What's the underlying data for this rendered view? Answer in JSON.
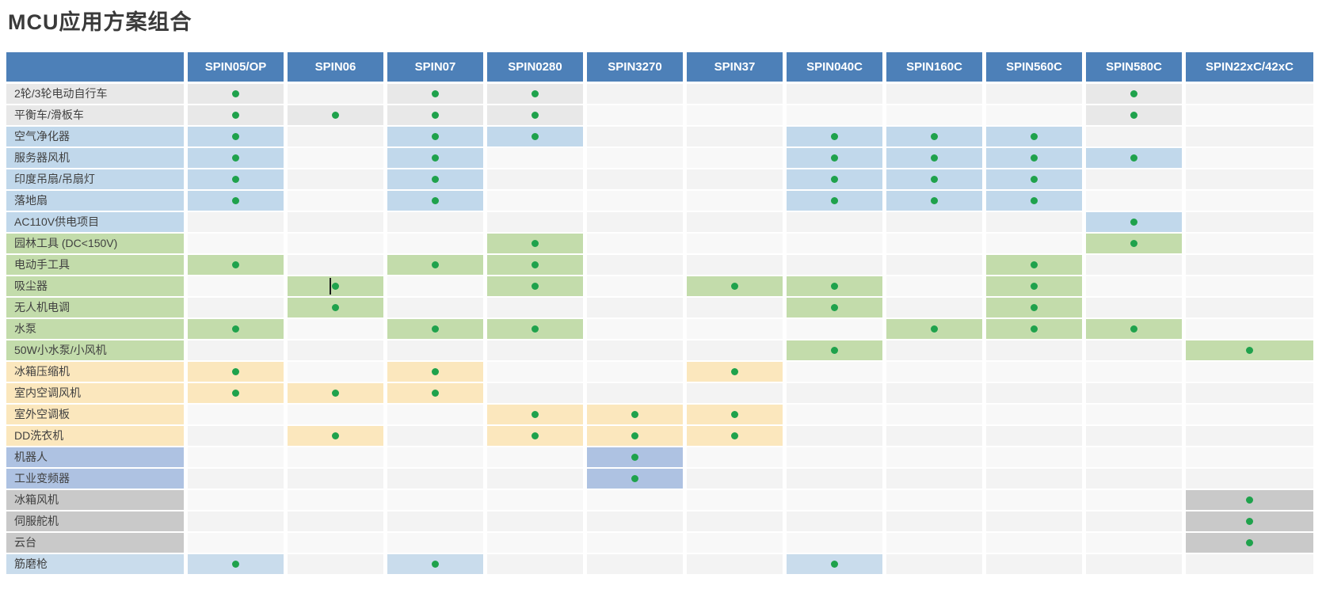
{
  "page": {
    "title": "MCU应用方案组合"
  },
  "colors": {
    "header_bg": "#4d80b8",
    "header_text": "#ffffff",
    "dot_green": "#1fa24c",
    "stripe_a": "#f3f3f3",
    "stripe_b": "#f8f8f8",
    "groups": {
      "gray": "#e8e8e8",
      "blue": "#c1d8eb",
      "green": "#c3dcab",
      "yellow": "#fbe7bd",
      "periwinkle": "#aec2e2",
      "gray2": "#c9c9c9",
      "lightblue": "#c9dcec"
    }
  },
  "table": {
    "columns": [
      "SPIN05/OP",
      "SPIN06",
      "SPIN07",
      "SPIN0280",
      "SPIN3270",
      "SPIN37",
      "SPIN040C",
      "SPIN160C",
      "SPIN560C",
      "SPIN580C",
      "SPIN22xC/42xC"
    ],
    "rows": [
      {
        "label": "2轮/3轮电动自行车",
        "group": "gray",
        "dots": [
          0,
          2,
          3,
          9
        ]
      },
      {
        "label": "平衡车/滑板车",
        "group": "gray",
        "dots": [
          0,
          1,
          2,
          3,
          9
        ]
      },
      {
        "label": "空气净化器",
        "group": "blue",
        "dots": [
          0,
          2,
          3,
          6,
          7,
          8
        ]
      },
      {
        "label": "服务器风机",
        "group": "blue",
        "dots": [
          0,
          2,
          6,
          7,
          8,
          9
        ]
      },
      {
        "label": "印度吊扇/吊扇灯",
        "group": "blue",
        "dots": [
          0,
          2,
          6,
          7,
          8
        ]
      },
      {
        "label": "落地扇",
        "group": "blue",
        "dots": [
          0,
          2,
          6,
          7,
          8
        ]
      },
      {
        "label": "AC110V供电项目",
        "group": "blue",
        "dots": [
          9
        ]
      },
      {
        "label": "园林工具 (DC<150V)",
        "group": "green",
        "dots": [
          3,
          9
        ]
      },
      {
        "label": "电动手工具",
        "group": "green",
        "dots": [
          0,
          2,
          3,
          8
        ]
      },
      {
        "label": "吸尘器",
        "group": "green",
        "dots": [
          1,
          3,
          5,
          6,
          8
        ]
      },
      {
        "label": "无人机电调",
        "group": "green",
        "dots": [
          1,
          6,
          8
        ]
      },
      {
        "label": "水泵",
        "group": "green",
        "dots": [
          0,
          2,
          3,
          7,
          8,
          9
        ]
      },
      {
        "label": "50W小水泵/小风机",
        "group": "green",
        "dots": [
          6,
          10
        ]
      },
      {
        "label": "冰箱压缩机",
        "group": "yellow",
        "dots": [
          0,
          2,
          5
        ]
      },
      {
        "label": "室内空调风机",
        "group": "yellow",
        "dots": [
          0,
          1,
          2
        ]
      },
      {
        "label": "室外空调板",
        "group": "yellow",
        "dots": [
          3,
          4,
          5
        ]
      },
      {
        "label": "DD洗衣机",
        "group": "yellow",
        "dots": [
          1,
          3,
          4,
          5
        ]
      },
      {
        "label": "机器人",
        "group": "periwinkle",
        "dots": [
          4
        ]
      },
      {
        "label": "工业变频器",
        "group": "periwinkle",
        "dots": [
          4
        ]
      },
      {
        "label": "冰箱风机",
        "group": "gray2",
        "dots": [
          10
        ]
      },
      {
        "label": "伺服舵机",
        "group": "gray2",
        "dots": [
          10
        ]
      },
      {
        "label": "云台",
        "group": "gray2",
        "dots": [
          10
        ]
      },
      {
        "label": "筋磨枪",
        "group": "lightblue",
        "dots": [
          0,
          2,
          6
        ]
      }
    ],
    "cursor_artifact": {
      "row": 9,
      "col": 1
    }
  }
}
